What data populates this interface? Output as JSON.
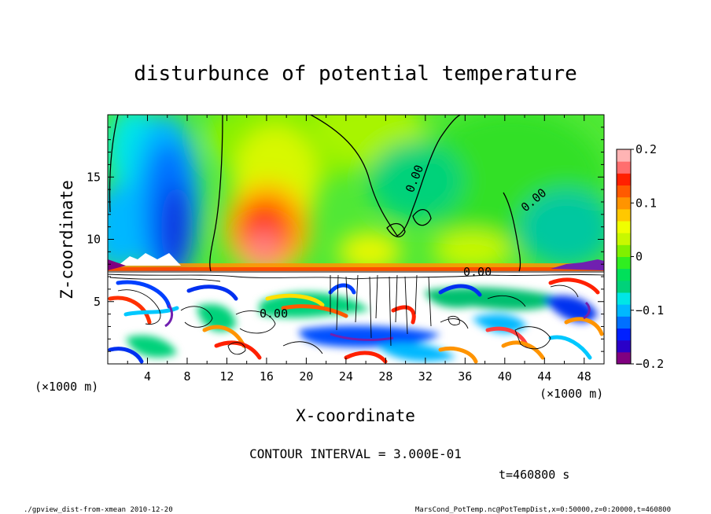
{
  "chart_data": {
    "type": "heatmap",
    "title": "disturbunce of potential temperature",
    "xlabel": "X-coordinate",
    "ylabel": "Z-coordinate",
    "x_unit": "(×1000 m)",
    "y_unit": "(×1000 m)",
    "xlim": [
      0,
      50
    ],
    "ylim": [
      0,
      20
    ],
    "x_ticks": [
      "4",
      "8",
      "12",
      "16",
      "20",
      "24",
      "28",
      "32",
      "36",
      "40",
      "44",
      "48"
    ],
    "y_ticks": [
      "5",
      "10",
      "15"
    ],
    "contour_labels": [
      "0.00",
      "0.00",
      "0.00",
      "0.00"
    ],
    "colorbar": {
      "ticks": [
        "0.2",
        "0.1",
        "0",
        "−0.1",
        "−0.2"
      ],
      "min": -0.2,
      "max": 0.2,
      "colors": [
        "#800080",
        "#2a00c8",
        "#0020ff",
        "#0070ff",
        "#00b8ff",
        "#00e6e6",
        "#00d27a",
        "#00e05a",
        "#30ee20",
        "#80f000",
        "#c8f800",
        "#f0ff00",
        "#ffc800",
        "#ff9400",
        "#ff5a00",
        "#ff2000",
        "#ff6e6e",
        "#ffb4b4"
      ]
    },
    "contour_interval_text": "CONTOUR INTERVAL = 3.000E-01",
    "time_text": "t=460800 s",
    "footer_left": "./gpview_dist-from-xmean  2010-12-20",
    "footer_right": "MarsCond_PotTemp.nc@PotTempDist,x=0:50000,z=0:20000,t=460800"
  }
}
